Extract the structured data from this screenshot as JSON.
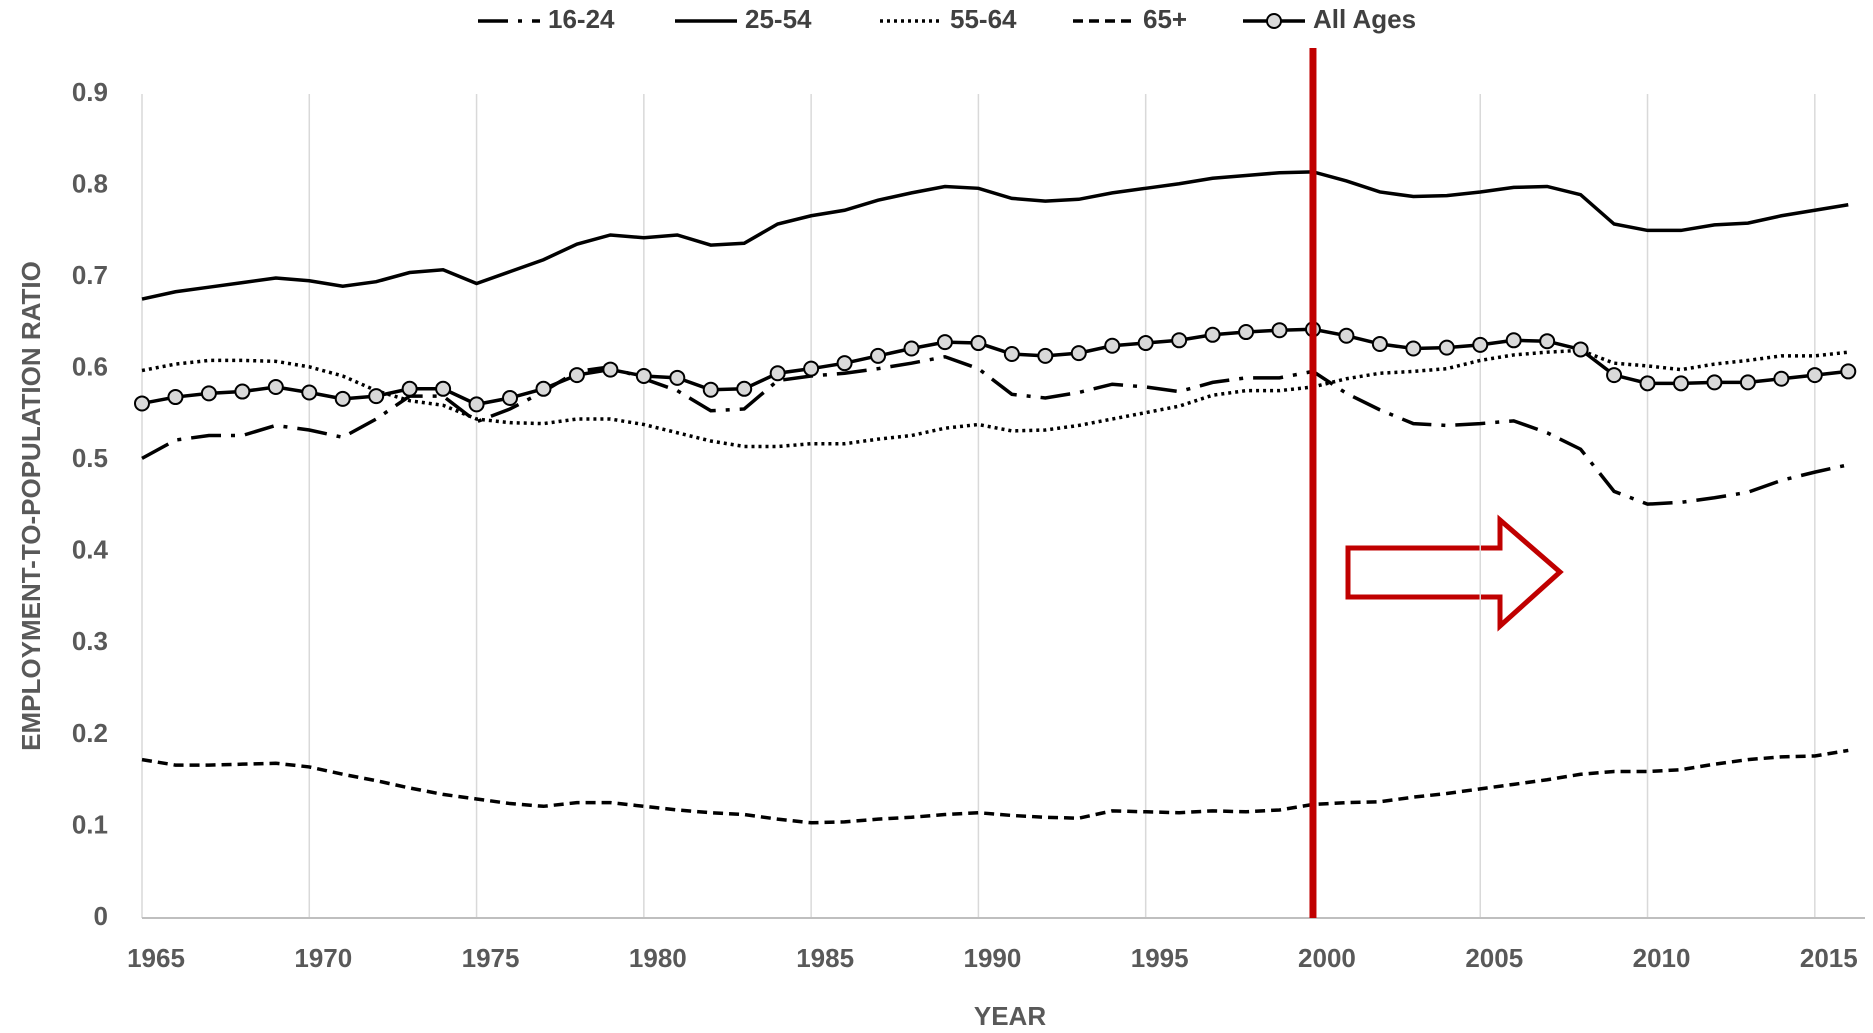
{
  "chart_data": {
    "type": "line",
    "x_label": "YEAR",
    "y_label": "EMPLOYMENT-TO-POPULATION RATIO",
    "x": [
      1965,
      1966,
      1967,
      1968,
      1969,
      1970,
      1971,
      1972,
      1973,
      1974,
      1975,
      1976,
      1977,
      1978,
      1979,
      1980,
      1981,
      1982,
      1983,
      1984,
      1985,
      1986,
      1987,
      1988,
      1989,
      1990,
      1991,
      1992,
      1993,
      1994,
      1995,
      1996,
      1997,
      1998,
      1999,
      2000,
      2001,
      2002,
      2003,
      2004,
      2005,
      2006,
      2007,
      2008,
      2009,
      2010,
      2011,
      2012,
      2013,
      2014,
      2015,
      2016
    ],
    "xlim": [
      1965,
      2016.5
    ],
    "xticks": [
      1965,
      1970,
      1975,
      1980,
      1985,
      1990,
      1995,
      2000,
      2005,
      2010,
      2015
    ],
    "ylim": [
      0,
      0.9
    ],
    "yticks": [
      0,
      0.1,
      0.2,
      0.3,
      0.4,
      0.5,
      0.6,
      0.7,
      0.8,
      0.9
    ],
    "grid": true,
    "legend": "top",
    "vline": {
      "x": 2000,
      "color": "#c00000"
    },
    "series": [
      {
        "name": "16-24",
        "color": "#000000",
        "style": "dashdot",
        "values": [
          0.502,
          0.522,
          0.527,
          0.527,
          0.538,
          0.533,
          0.525,
          0.545,
          0.57,
          0.57,
          0.542,
          0.556,
          0.575,
          0.597,
          0.602,
          0.589,
          0.576,
          0.554,
          0.556,
          0.587,
          0.592,
          0.595,
          0.6,
          0.606,
          0.613,
          0.6,
          0.572,
          0.568,
          0.574,
          0.583,
          0.58,
          0.575,
          0.585,
          0.59,
          0.59,
          0.597,
          0.573,
          0.555,
          0.54,
          0.538,
          0.54,
          0.543,
          0.53,
          0.512,
          0.466,
          0.452,
          0.454,
          0.459,
          0.465,
          0.478,
          0.487,
          0.495
        ]
      },
      {
        "name": "25-54",
        "color": "#000000",
        "style": "solid",
        "values": [
          0.676,
          0.684,
          0.689,
          0.694,
          0.699,
          0.696,
          0.69,
          0.695,
          0.705,
          0.708,
          0.693,
          0.706,
          0.719,
          0.736,
          0.746,
          0.743,
          0.746,
          0.735,
          0.737,
          0.758,
          0.767,
          0.773,
          0.784,
          0.792,
          0.799,
          0.797,
          0.786,
          0.783,
          0.785,
          0.792,
          0.797,
          0.802,
          0.808,
          0.811,
          0.814,
          0.815,
          0.805,
          0.793,
          0.788,
          0.789,
          0.793,
          0.798,
          0.799,
          0.79,
          0.758,
          0.751,
          0.751,
          0.757,
          0.759,
          0.767,
          0.773,
          0.779
        ]
      },
      {
        "name": "55-64",
        "color": "#000000",
        "style": "dotted",
        "values": [
          0.598,
          0.605,
          0.609,
          0.609,
          0.608,
          0.602,
          0.592,
          0.576,
          0.565,
          0.56,
          0.545,
          0.541,
          0.54,
          0.545,
          0.545,
          0.539,
          0.53,
          0.521,
          0.515,
          0.515,
          0.518,
          0.518,
          0.523,
          0.527,
          0.535,
          0.539,
          0.532,
          0.533,
          0.538,
          0.545,
          0.552,
          0.559,
          0.571,
          0.576,
          0.576,
          0.58,
          0.589,
          0.595,
          0.597,
          0.6,
          0.609,
          0.615,
          0.618,
          0.62,
          0.606,
          0.603,
          0.599,
          0.605,
          0.609,
          0.614,
          0.614,
          0.618
        ]
      },
      {
        "name": "65+",
        "color": "#000000",
        "style": "dashed",
        "values": [
          0.173,
          0.167,
          0.167,
          0.168,
          0.169,
          0.165,
          0.157,
          0.15,
          0.142,
          0.135,
          0.13,
          0.125,
          0.122,
          0.126,
          0.126,
          0.122,
          0.118,
          0.115,
          0.113,
          0.108,
          0.104,
          0.105,
          0.108,
          0.11,
          0.113,
          0.115,
          0.112,
          0.11,
          0.109,
          0.117,
          0.116,
          0.115,
          0.117,
          0.116,
          0.118,
          0.124,
          0.126,
          0.127,
          0.132,
          0.136,
          0.141,
          0.146,
          0.151,
          0.157,
          0.16,
          0.16,
          0.162,
          0.168,
          0.173,
          0.176,
          0.177,
          0.183
        ]
      },
      {
        "name": "All Ages",
        "color": "#000000",
        "style": "solid",
        "marker": "circle",
        "values": [
          0.562,
          0.569,
          0.573,
          0.575,
          0.58,
          0.574,
          0.567,
          0.57,
          0.578,
          0.578,
          0.561,
          0.568,
          0.578,
          0.593,
          0.599,
          0.592,
          0.59,
          0.577,
          0.578,
          0.595,
          0.6,
          0.606,
          0.614,
          0.622,
          0.629,
          0.628,
          0.616,
          0.614,
          0.617,
          0.625,
          0.628,
          0.631,
          0.637,
          0.64,
          0.642,
          0.643,
          0.636,
          0.627,
          0.622,
          0.623,
          0.626,
          0.631,
          0.63,
          0.621,
          0.593,
          0.584,
          0.584,
          0.585,
          0.585,
          0.589,
          0.593,
          0.597
        ]
      }
    ]
  }
}
